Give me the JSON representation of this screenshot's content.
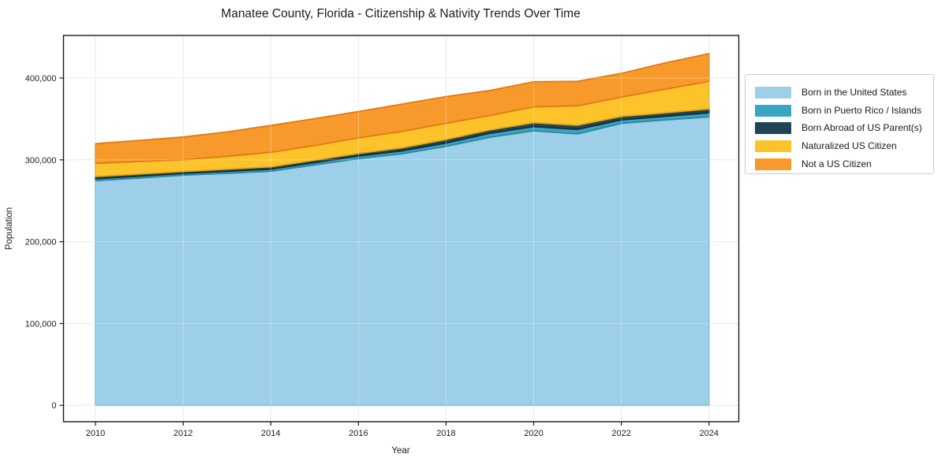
{
  "title": "Manatee County, Florida - Citizenship & Nativity Trends Over Time",
  "chart_data": {
    "type": "area",
    "stacked": true,
    "title": "Manatee County, Florida - Citizenship & Nativity Trends Over Time",
    "xlabel": "Year",
    "ylabel": "Population",
    "grid": true,
    "legend_position": "right",
    "x": [
      2010,
      2011,
      2012,
      2013,
      2014,
      2015,
      2016,
      2017,
      2018,
      2019,
      2020,
      2021,
      2022,
      2023,
      2024
    ],
    "series": [
      {
        "name": "Born in the United States",
        "color": "#9dcfe8",
        "edge_color": "#74b6d8",
        "values": [
          274500,
          277800,
          281300,
          283600,
          286100,
          293800,
          301500,
          307500,
          316500,
          327600,
          335600,
          331700,
          344600,
          348800,
          352600
        ]
      },
      {
        "name": "Born in Puerto Rico / Islands",
        "color": "#3aa5c2",
        "edge_color": "#2b87a1",
        "values": [
          2300,
          2300,
          2200,
          2400,
          2500,
          2800,
          3200,
          3500,
          4000,
          4800,
          5100,
          5500,
          4200,
          4400,
          4900
        ]
      },
      {
        "name": "Born Abroad of US Parent(s)",
        "color": "#1f4456",
        "edge_color": "#152f3d",
        "values": [
          2900,
          2600,
          2300,
          2600,
          2900,
          3100,
          3200,
          3700,
          4500,
          4200,
          4800,
          5100,
          4400,
          4300,
          4800
        ]
      },
      {
        "name": "Naturalized US Citizen",
        "color": "#fdc32b",
        "edge_color": "#e5a816",
        "values": [
          16100,
          15300,
          14300,
          15700,
          17700,
          17800,
          19000,
          20100,
          19700,
          17600,
          19300,
          23800,
          23500,
          28900,
          33700
        ]
      },
      {
        "name": "Not a US Citizen",
        "color": "#f8992b",
        "edge_color": "#e07c13",
        "values": [
          24000,
          25800,
          27800,
          29800,
          32800,
          32900,
          32100,
          33400,
          32600,
          30600,
          30600,
          29900,
          29000,
          32100,
          33800
        ]
      }
    ],
    "xticks": [
      2010,
      2012,
      2014,
      2016,
      2018,
      2020,
      2022,
      2024
    ],
    "xtick_labels": [
      "2010",
      "2012",
      "2014",
      "2016",
      "2018",
      "2020",
      "2022",
      "2024"
    ],
    "yticks": [
      0,
      100000,
      200000,
      300000,
      400000
    ],
    "ytick_labels": [
      "0",
      "100,000",
      "200,000",
      "300,000",
      "400,000"
    ],
    "xlim": [
      2009.27,
      2024.68
    ],
    "ylim": [
      -20000,
      452000
    ]
  }
}
